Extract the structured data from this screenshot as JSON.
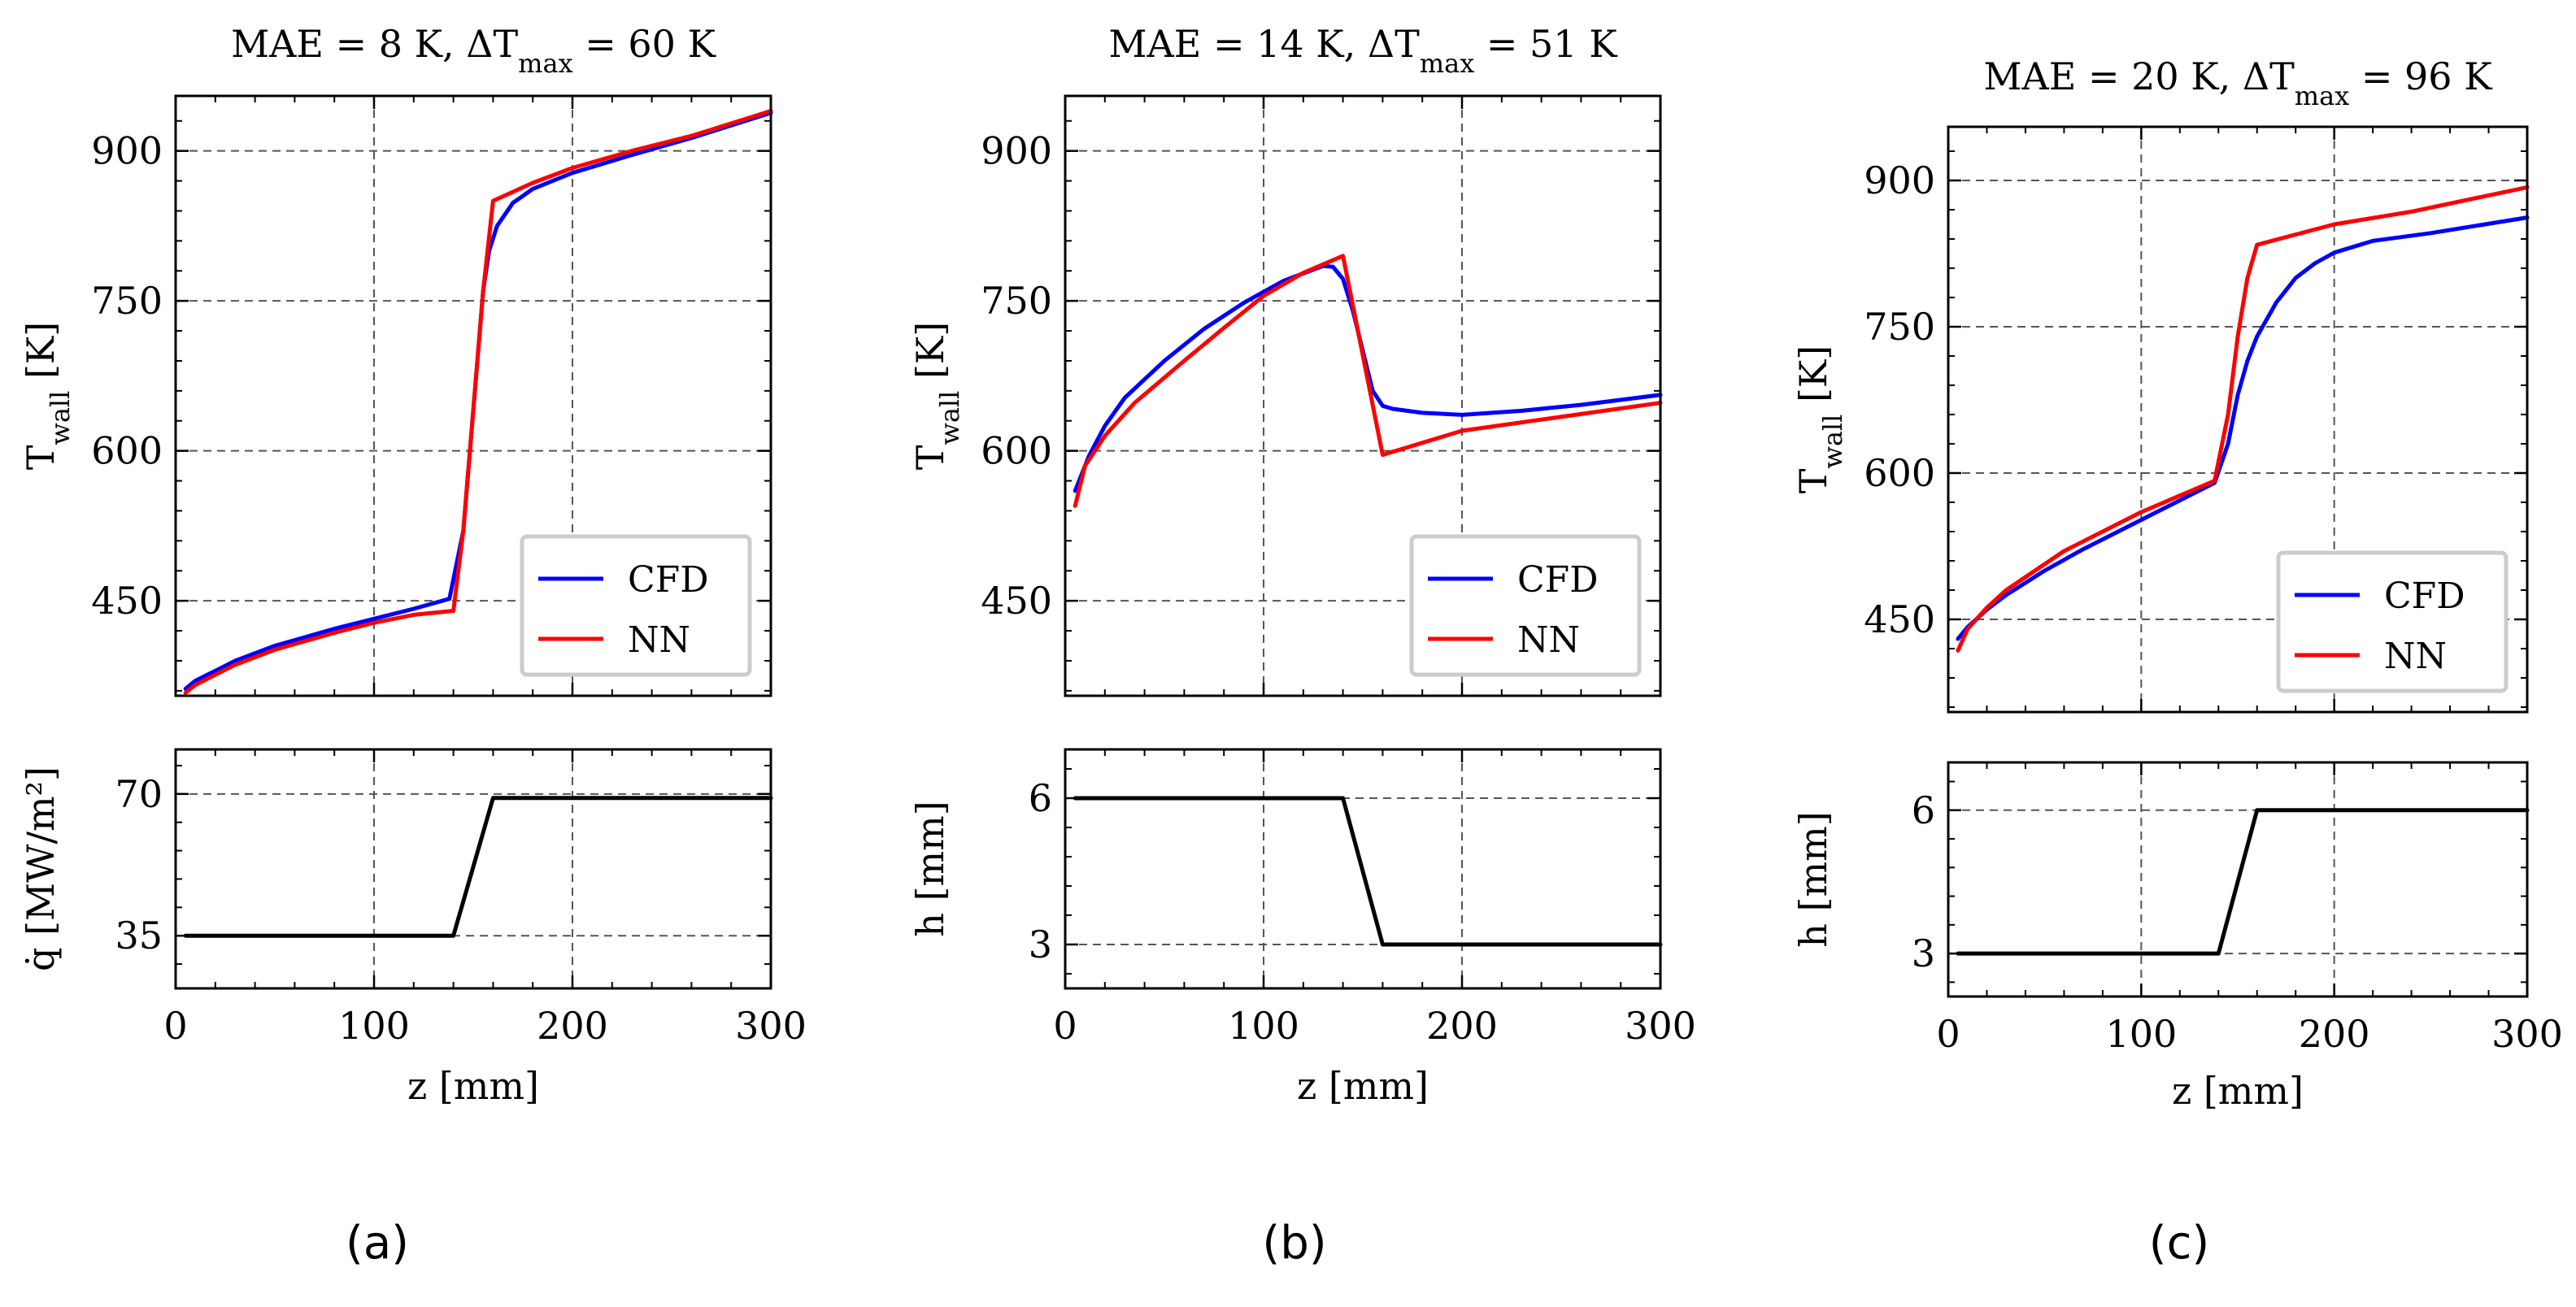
{
  "chart_data": [
    {
      "panel": "(a)",
      "title": "MAE = 8 K, ΔT_max = 60 K",
      "top": {
        "type": "line",
        "ylabel": "T_wall [K]",
        "xlim": [
          0,
          300
        ],
        "ylim": [
          355,
          955
        ],
        "yticks": [
          450,
          600,
          750,
          900
        ],
        "xticks": [
          0,
          100,
          200,
          300
        ],
        "grid": true,
        "legend": "lower-right",
        "series": [
          {
            "name": "CFD",
            "color": "#0000ff",
            "x": [
              5,
              10,
              20,
              30,
              50,
              80,
              100,
              120,
              138,
              145,
              150,
              155,
              158,
              162,
              170,
              180,
              200,
              230,
              260,
              300
            ],
            "y": [
              362,
              370,
              380,
              390,
              405,
              422,
              432,
              442,
              452,
              520,
              640,
              760,
              800,
              825,
              848,
              862,
              878,
              896,
              913,
              938
            ]
          },
          {
            "name": "NN",
            "color": "#ff0000",
            "x": [
              5,
              10,
              20,
              30,
              50,
              80,
              100,
              120,
              140,
              145,
              150,
              155,
              160,
              180,
              200,
              230,
              260,
              300
            ],
            "y": [
              358,
              366,
              376,
              386,
              401,
              418,
              428,
              436,
              440,
              520,
              640,
              760,
              850,
              868,
              883,
              900,
              915,
              940
            ]
          }
        ]
      },
      "bottom": {
        "type": "line",
        "ylabel": "q̇ [MW/m²]",
        "ylim": [
          22,
          81
        ],
        "yticks": [
          35,
          70
        ],
        "xticks": [
          0,
          100,
          200,
          300
        ],
        "xlabel": "z [mm]",
        "series": [
          {
            "name": "",
            "color": "#000000",
            "x": [
              5,
              140,
              160,
              300
            ],
            "y": [
              35,
              35,
              69,
              69
            ]
          }
        ]
      }
    },
    {
      "panel": "(b)",
      "title": "MAE = 14 K, ΔT_max = 51 K",
      "top": {
        "type": "line",
        "ylabel": "T_wall [K]",
        "xlim": [
          0,
          300
        ],
        "ylim": [
          355,
          955
        ],
        "yticks": [
          450,
          600,
          750,
          900
        ],
        "xticks": [
          0,
          100,
          200,
          300
        ],
        "grid": true,
        "legend": "lower-right",
        "series": [
          {
            "name": "CFD",
            "color": "#0000ff",
            "x": [
              5,
              8,
              12,
              20,
              30,
              50,
              70,
              90,
              110,
              130,
              135,
              140,
              145,
              150,
              155,
              160,
              165,
              180,
              200,
              230,
              260,
              300
            ],
            "y": [
              560,
              575,
              595,
              625,
              653,
              690,
              722,
              748,
              770,
              785,
              784,
              772,
              740,
              700,
              660,
              645,
              642,
              638,
              636,
              640,
              646,
              656
            ]
          },
          {
            "name": "NN",
            "color": "#ff0000",
            "x": [
              5,
              10,
              20,
              35,
              60,
              80,
              100,
              120,
              140,
              160,
              200,
              300
            ],
            "y": [
              545,
              585,
              615,
              648,
              690,
              723,
              755,
              778,
              795,
              596,
              620,
              648
            ]
          }
        ]
      },
      "bottom": {
        "type": "line",
        "ylabel": "h [mm]",
        "ylim": [
          2.1,
          7.0
        ],
        "yticks": [
          3,
          6
        ],
        "xticks": [
          0,
          100,
          200,
          300
        ],
        "xlabel": "z [mm]",
        "series": [
          {
            "name": "",
            "color": "#000000",
            "x": [
              5,
              140,
              160,
              300
            ],
            "y": [
              6,
              6,
              3,
              3
            ]
          }
        ]
      }
    },
    {
      "panel": "(c)",
      "title": "MAE = 20 K, ΔT_max = 96 K",
      "top": {
        "type": "line",
        "ylabel": "T_wall [K]",
        "xlim": [
          0,
          300
        ],
        "ylim": [
          355,
          955
        ],
        "yticks": [
          450,
          600,
          750,
          900
        ],
        "xticks": [
          0,
          100,
          200,
          300
        ],
        "grid": true,
        "legend": "lower-right",
        "series": [
          {
            "name": "CFD",
            "color": "#0000ff",
            "x": [
              5,
              10,
              20,
              30,
              50,
              70,
              100,
              120,
              138,
              145,
              150,
              155,
              160,
              170,
              180,
              190,
              200,
              220,
              250,
              300
            ],
            "y": [
              430,
              442,
              460,
              475,
              500,
              522,
              552,
              572,
              590,
              630,
              680,
              715,
              740,
              775,
              800,
              815,
              826,
              838,
              846,
              862
            ]
          },
          {
            "name": "NN",
            "color": "#ff0000",
            "x": [
              5,
              10,
              20,
              30,
              60,
              100,
              138,
              145,
              150,
              155,
              160,
              200,
              240,
              300
            ],
            "y": [
              418,
              440,
              462,
              480,
              520,
              560,
              592,
              660,
              740,
              800,
              834,
              855,
              868,
              893
            ]
          }
        ]
      },
      "bottom": {
        "type": "line",
        "ylabel": "h [mm]",
        "ylim": [
          2.1,
          7.0
        ],
        "yticks": [
          3,
          6
        ],
        "xticks": [
          0,
          100,
          200,
          300
        ],
        "xlabel": "z [mm]",
        "series": [
          {
            "name": "",
            "color": "#000000",
            "x": [
              5,
              140,
              160,
              300
            ],
            "y": [
              3,
              3,
              6,
              6
            ]
          }
        ]
      }
    }
  ],
  "captions": [
    "(a)",
    "(b)",
    "(c)"
  ]
}
